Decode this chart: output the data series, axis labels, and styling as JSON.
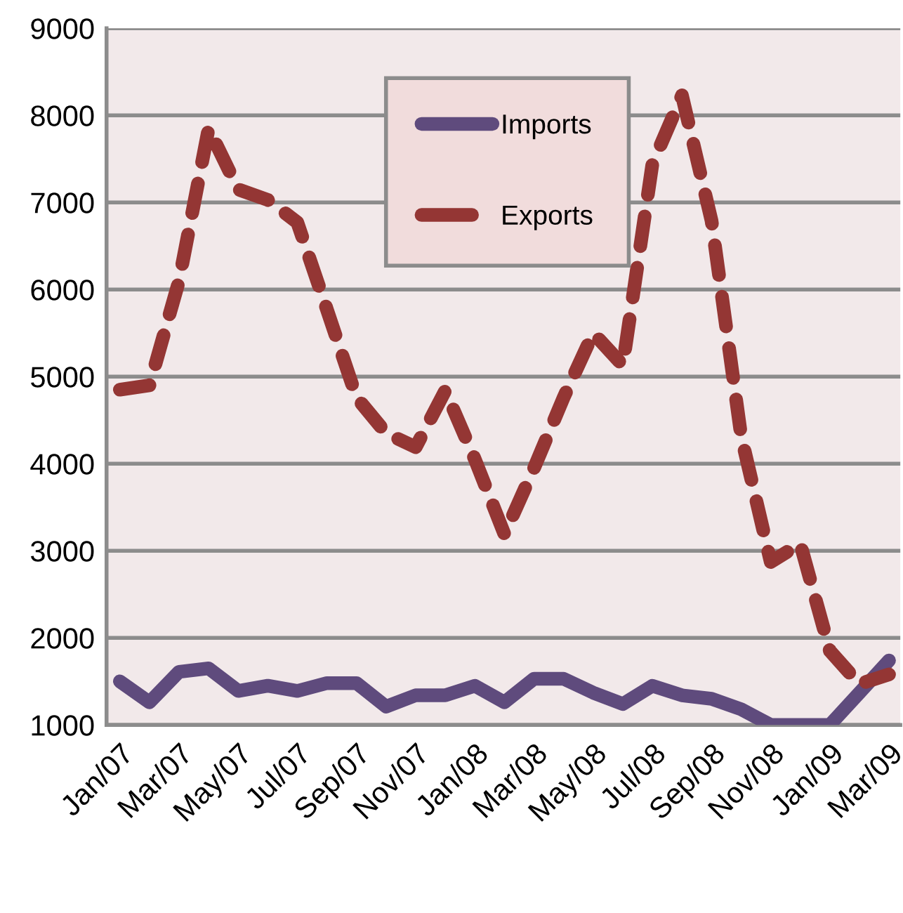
{
  "chart_data": {
    "type": "line",
    "categories": [
      "Jan/07",
      null,
      "Mar/07",
      null,
      "May/07",
      null,
      "Jul/07",
      null,
      "Sep/07",
      null,
      "Nov/07",
      null,
      "Jan/08",
      null,
      "Mar/08",
      null,
      "May/08",
      null,
      "Jul/08",
      null,
      "Sep/08",
      null,
      "Nov/08",
      null,
      "Jan/09",
      null,
      "Mar/09"
    ],
    "series": [
      {
        "name": "Imports",
        "color": "#5f4b7d",
        "line_style": "solid",
        "values": [
          1500,
          1260,
          1610,
          1650,
          1390,
          1450,
          1390,
          1480,
          1480,
          1210,
          1340,
          1340,
          1450,
          1260,
          1530,
          1530,
          1370,
          1240,
          1450,
          1340,
          1300,
          1180,
          1000,
          1000,
          1000,
          1370,
          1740
        ]
      },
      {
        "name": "Exports",
        "color": "#943634",
        "line_style": "dashed",
        "values": [
          4850,
          4900,
          6100,
          7850,
          7150,
          7030,
          6770,
          5770,
          4760,
          4350,
          4190,
          4840,
          4050,
          3190,
          3950,
          4760,
          5500,
          5130,
          7440,
          8230,
          6790,
          4320,
          2870,
          3080,
          1850,
          1470,
          1580
        ]
      }
    ],
    "ylim": [
      1000,
      9000
    ],
    "yticks": [
      1000,
      2000,
      3000,
      4000,
      5000,
      6000,
      7000,
      8000,
      9000
    ],
    "grid": "y",
    "legend": "top",
    "marker": "none"
  }
}
